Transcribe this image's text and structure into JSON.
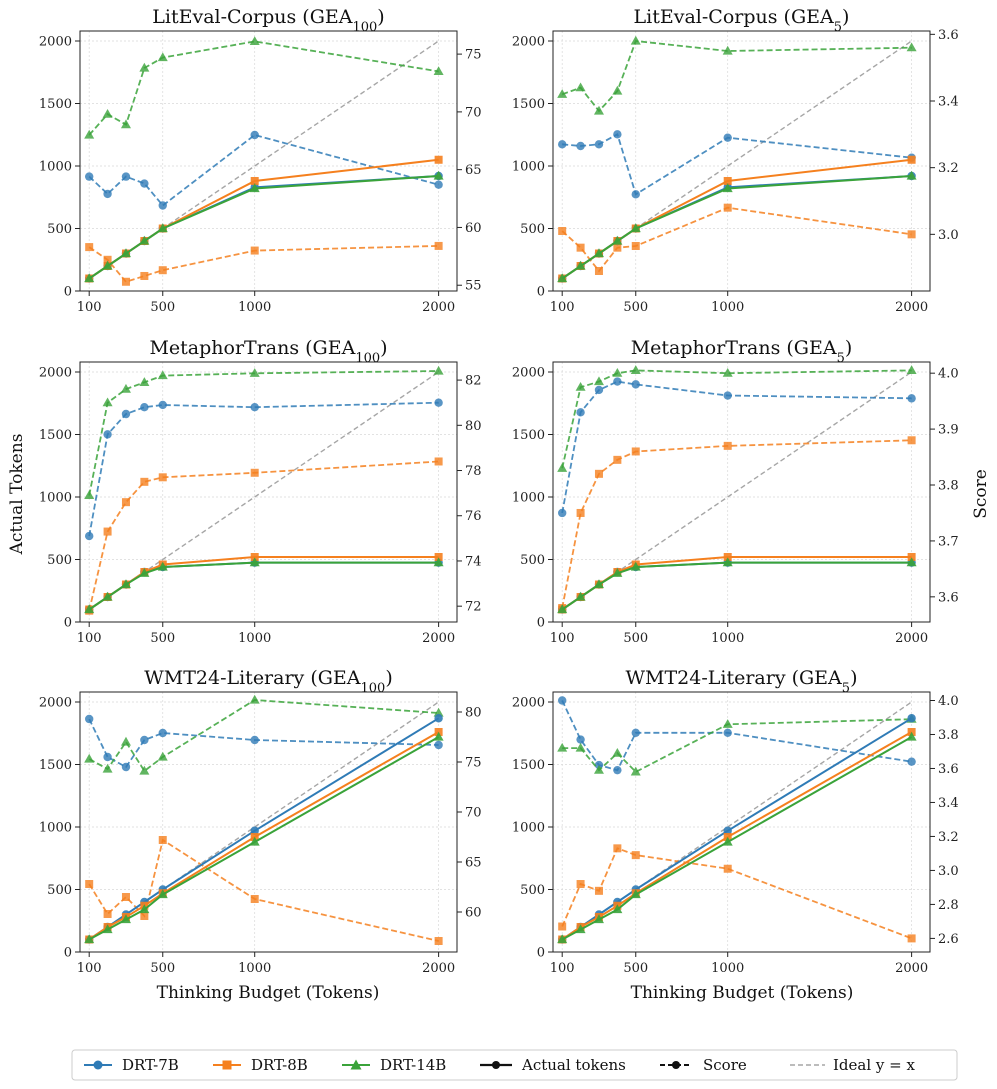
{
  "figure": {
    "y_label_left": "Actual Tokens",
    "y_label_right": "Score",
    "x_label": "Thinking Budget (Tokens)"
  },
  "legend": {
    "dual": "DRT-7B",
    "mid": "DRT-8B",
    "big": "DRT-14B",
    "actual": "Actual tokens",
    "score": "Score",
    "ideal": "Ideal y = x"
  },
  "colors": {
    "DRT-7B": "#2f7bb6",
    "DRT-8B": "#f5801e",
    "DRT-14B": "#3aa33a",
    "ideal": "#a6a6a6",
    "grid": "#d9d9d9",
    "legend_marker": "#111111"
  },
  "chart_data": [
    {
      "type": "line",
      "title_base": "LitEval-Corpus (GEA",
      "title_sub": "100",
      "title_end": ")",
      "x": [
        100,
        200,
        300,
        400,
        500,
        1000,
        2000
      ],
      "xticks": [
        100,
        500,
        1000,
        2000
      ],
      "xlim": [
        50,
        2100
      ],
      "ylim_left": [
        0,
        2080
      ],
      "yticks_left": [
        0,
        500,
        1000,
        1500,
        2000
      ],
      "ylim_right": [
        54.5,
        77
      ],
      "yticks_right": [
        55,
        60,
        65,
        70,
        75
      ],
      "right_decimals": 0,
      "actual": [
        {
          "name": "DRT-7B",
          "values": [
            100,
            200,
            300,
            400,
            500,
            830,
            920
          ]
        },
        {
          "name": "DRT-8B",
          "values": [
            100,
            200,
            300,
            400,
            500,
            880,
            1050
          ]
        },
        {
          "name": "DRT-14B",
          "values": [
            100,
            200,
            300,
            400,
            500,
            820,
            920
          ]
        }
      ],
      "score": [
        {
          "name": "DRT-7B",
          "values": [
            64.4,
            62.9,
            64.4,
            63.8,
            61.9,
            68.0,
            63.7
          ]
        },
        {
          "name": "DRT-8B",
          "values": [
            58.3,
            57.2,
            55.3,
            55.8,
            56.3,
            58.0,
            58.4
          ]
        },
        {
          "name": "DRT-14B",
          "values": [
            68.0,
            69.8,
            68.9,
            73.8,
            74.7,
            76.1,
            73.5
          ]
        }
      ]
    },
    {
      "type": "line",
      "title_base": "LitEval-Corpus (GEA",
      "title_sub": "5",
      "title_end": ")",
      "x": [
        100,
        200,
        300,
        400,
        500,
        1000,
        2000
      ],
      "xticks": [
        100,
        500,
        1000,
        2000
      ],
      "xlim": [
        50,
        2100
      ],
      "ylim_left": [
        0,
        2080
      ],
      "yticks_left": [
        0,
        500,
        1000,
        1500,
        2000
      ],
      "ylim_right": [
        2.83,
        3.61
      ],
      "yticks_right": [
        3.0,
        3.2,
        3.4,
        3.6
      ],
      "right_decimals": 1,
      "actual": [
        {
          "name": "DRT-7B",
          "values": [
            100,
            200,
            300,
            400,
            500,
            830,
            920
          ]
        },
        {
          "name": "DRT-8B",
          "values": [
            100,
            200,
            300,
            400,
            500,
            880,
            1050
          ]
        },
        {
          "name": "DRT-14B",
          "values": [
            100,
            200,
            300,
            400,
            500,
            820,
            920
          ]
        }
      ],
      "score": [
        {
          "name": "DRT-7B",
          "values": [
            3.27,
            3.265,
            3.27,
            3.3,
            3.12,
            3.29,
            3.23
          ]
        },
        {
          "name": "DRT-8B",
          "values": [
            3.01,
            2.96,
            2.89,
            2.96,
            2.965,
            3.08,
            3.0
          ]
        },
        {
          "name": "DRT-14B",
          "values": [
            3.42,
            3.44,
            3.37,
            3.43,
            3.58,
            3.55,
            3.56
          ]
        }
      ]
    },
    {
      "type": "line",
      "title_base": "MetaphorTrans (GEA",
      "title_sub": "100",
      "title_end": ")",
      "x": [
        100,
        200,
        300,
        400,
        500,
        1000,
        2000
      ],
      "xticks": [
        100,
        500,
        1000,
        2000
      ],
      "xlim": [
        50,
        2100
      ],
      "ylim_left": [
        0,
        2080
      ],
      "yticks_left": [
        0,
        500,
        1000,
        1500,
        2000
      ],
      "ylim_right": [
        71.3,
        82.8
      ],
      "yticks_right": [
        72,
        74,
        76,
        78,
        80,
        82
      ],
      "right_decimals": 0,
      "actual": [
        {
          "name": "DRT-7B",
          "values": [
            100,
            200,
            300,
            400,
            440,
            475,
            475
          ]
        },
        {
          "name": "DRT-8B",
          "values": [
            100,
            200,
            300,
            400,
            460,
            520,
            520
          ]
        },
        {
          "name": "DRT-14B",
          "values": [
            100,
            200,
            300,
            390,
            440,
            475,
            475
          ]
        }
      ],
      "score": [
        {
          "name": "DRT-7B",
          "values": [
            75.1,
            79.6,
            80.5,
            80.8,
            80.9,
            80.8,
            81.0
          ]
        },
        {
          "name": "DRT-8B",
          "values": [
            71.8,
            75.3,
            76.6,
            77.5,
            77.7,
            77.9,
            78.4
          ]
        },
        {
          "name": "DRT-14B",
          "values": [
            76.9,
            81.0,
            81.6,
            81.9,
            82.2,
            82.3,
            82.4
          ]
        }
      ]
    },
    {
      "type": "line",
      "title_base": "MetaphorTrans (GEA",
      "title_sub": "5",
      "title_end": ")",
      "x": [
        100,
        200,
        300,
        400,
        500,
        1000,
        2000
      ],
      "xticks": [
        100,
        500,
        1000,
        2000
      ],
      "xlim": [
        50,
        2100
      ],
      "ylim_left": [
        0,
        2080
      ],
      "yticks_left": [
        0,
        500,
        1000,
        1500,
        2000
      ],
      "ylim_right": [
        3.555,
        4.02
      ],
      "yticks_right": [
        3.6,
        3.7,
        3.8,
        3.9,
        4.0
      ],
      "right_decimals": 1,
      "actual": [
        {
          "name": "DRT-7B",
          "values": [
            100,
            200,
            300,
            400,
            440,
            475,
            475
          ]
        },
        {
          "name": "DRT-8B",
          "values": [
            100,
            200,
            300,
            400,
            460,
            520,
            520
          ]
        },
        {
          "name": "DRT-14B",
          "values": [
            100,
            200,
            300,
            390,
            440,
            475,
            475
          ]
        }
      ],
      "score": [
        {
          "name": "DRT-7B",
          "values": [
            3.75,
            3.93,
            3.97,
            3.985,
            3.98,
            3.96,
            3.955
          ]
        },
        {
          "name": "DRT-8B",
          "values": [
            3.58,
            3.75,
            3.82,
            3.845,
            3.86,
            3.87,
            3.88
          ]
        },
        {
          "name": "DRT-14B",
          "values": [
            3.83,
            3.975,
            3.985,
            4.0,
            4.005,
            4.0,
            4.005
          ]
        }
      ]
    },
    {
      "type": "line",
      "title_base": "WMT24-Literary (GEA",
      "title_sub": "100",
      "title_end": ")",
      "x": [
        100,
        200,
        300,
        400,
        500,
        1000,
        2000
      ],
      "xticks": [
        100,
        500,
        1000,
        2000
      ],
      "xlim": [
        50,
        2100
      ],
      "ylim_left": [
        0,
        2080
      ],
      "yticks_left": [
        0,
        500,
        1000,
        1500,
        2000
      ],
      "ylim_right": [
        56,
        82
      ],
      "yticks_right": [
        60,
        65,
        70,
        75,
        80
      ],
      "right_decimals": 0,
      "actual": [
        {
          "name": "DRT-7B",
          "values": [
            100,
            200,
            300,
            400,
            500,
            970,
            1870
          ]
        },
        {
          "name": "DRT-8B",
          "values": [
            100,
            200,
            280,
            370,
            470,
            920,
            1760
          ]
        },
        {
          "name": "DRT-14B",
          "values": [
            100,
            180,
            260,
            340,
            460,
            880,
            1720
          ]
        }
      ],
      "score": [
        {
          "name": "DRT-7B",
          "values": [
            79.3,
            75.5,
            74.5,
            77.2,
            77.9,
            77.2,
            76.7
          ]
        },
        {
          "name": "DRT-8B",
          "values": [
            62.8,
            59.8,
            61.5,
            59.6,
            67.2,
            61.3,
            57.1
          ]
        },
        {
          "name": "DRT-14B",
          "values": [
            75.3,
            74.3,
            77.0,
            74.1,
            75.5,
            81.2,
            79.9
          ]
        }
      ]
    },
    {
      "type": "line",
      "title_base": "WMT24-Literary (GEA",
      "title_sub": "5",
      "title_end": ")",
      "x": [
        100,
        200,
        300,
        400,
        500,
        1000,
        2000
      ],
      "xticks": [
        100,
        500,
        1000,
        2000
      ],
      "xlim": [
        50,
        2100
      ],
      "ylim_left": [
        0,
        2080
      ],
      "yticks_left": [
        0,
        500,
        1000,
        1500,
        2000
      ],
      "ylim_right": [
        2.52,
        4.05
      ],
      "yticks_right": [
        2.6,
        2.8,
        3.0,
        3.2,
        3.4,
        3.6,
        3.8,
        4.0
      ],
      "right_decimals": 1,
      "actual": [
        {
          "name": "DRT-7B",
          "values": [
            100,
            200,
            300,
            400,
            500,
            970,
            1870
          ]
        },
        {
          "name": "DRT-8B",
          "values": [
            100,
            200,
            280,
            370,
            470,
            920,
            1760
          ]
        },
        {
          "name": "DRT-14B",
          "values": [
            100,
            180,
            260,
            340,
            460,
            880,
            1720
          ]
        }
      ],
      "score": [
        {
          "name": "DRT-7B",
          "values": [
            4.0,
            3.77,
            3.62,
            3.59,
            3.81,
            3.81,
            3.64
          ]
        },
        {
          "name": "DRT-8B",
          "values": [
            2.67,
            2.92,
            2.88,
            3.13,
            3.09,
            3.01,
            2.6
          ]
        },
        {
          "name": "DRT-14B",
          "values": [
            3.72,
            3.72,
            3.59,
            3.69,
            3.58,
            3.86,
            3.89
          ]
        }
      ]
    }
  ]
}
